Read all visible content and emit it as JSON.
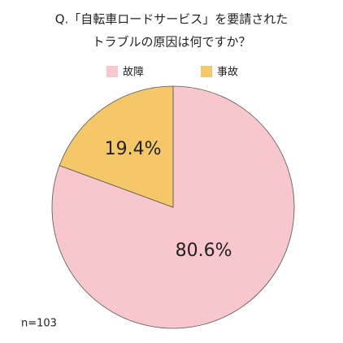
{
  "chart_data": {
    "type": "pie",
    "title": [
      "Q.「自転車ロードサービス」を要請された",
      "トラブルの原因は何ですか？"
    ],
    "categories": [
      "故障",
      "事故"
    ],
    "values": [
      80.6,
      19.4
    ],
    "value_labels": [
      "80.6%",
      "19.4%"
    ],
    "colors": [
      "#f8c6cd",
      "#f5c768"
    ],
    "note": "n=103"
  }
}
